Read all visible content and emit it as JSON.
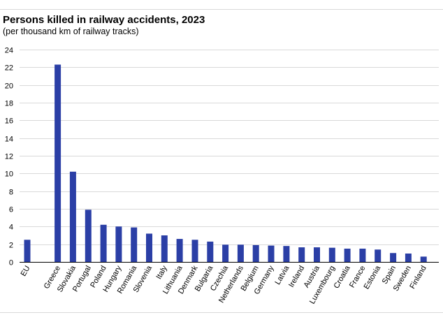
{
  "chart_data": {
    "type": "bar",
    "title": "Persons killed in railway accidents, 2023",
    "subtitle": "(per thousand km of railway tracks)",
    "xlabel": "",
    "ylabel": "",
    "ylim": [
      0,
      24
    ],
    "yticks": [
      0,
      2,
      4,
      6,
      8,
      10,
      12,
      14,
      16,
      18,
      20,
      22,
      24
    ],
    "grid": true,
    "legend": "none",
    "bar_color": "#2b3fa6",
    "categories": [
      "EU",
      "",
      "Greece",
      "Slovakia",
      "Portugal",
      "Poland",
      "Hungary",
      "Romania",
      "Slovenia",
      "Italy",
      "Lithuania",
      "Denmark",
      "Bulgaria",
      "Czechia",
      "Netherlands",
      "Belgium",
      "Germany",
      "Latvia",
      "Ireland",
      "Austria",
      "Luxembourg",
      "Croatia",
      "France",
      "Estonia",
      "Spain",
      "Sweden",
      "Finland"
    ],
    "values": [
      2.5,
      null,
      22.3,
      10.2,
      5.9,
      4.2,
      4.0,
      3.9,
      3.2,
      3.0,
      2.6,
      2.5,
      2.3,
      1.95,
      1.95,
      1.9,
      1.85,
      1.8,
      1.65,
      1.65,
      1.6,
      1.5,
      1.5,
      1.4,
      1.0,
      0.95,
      0.6
    ]
  }
}
